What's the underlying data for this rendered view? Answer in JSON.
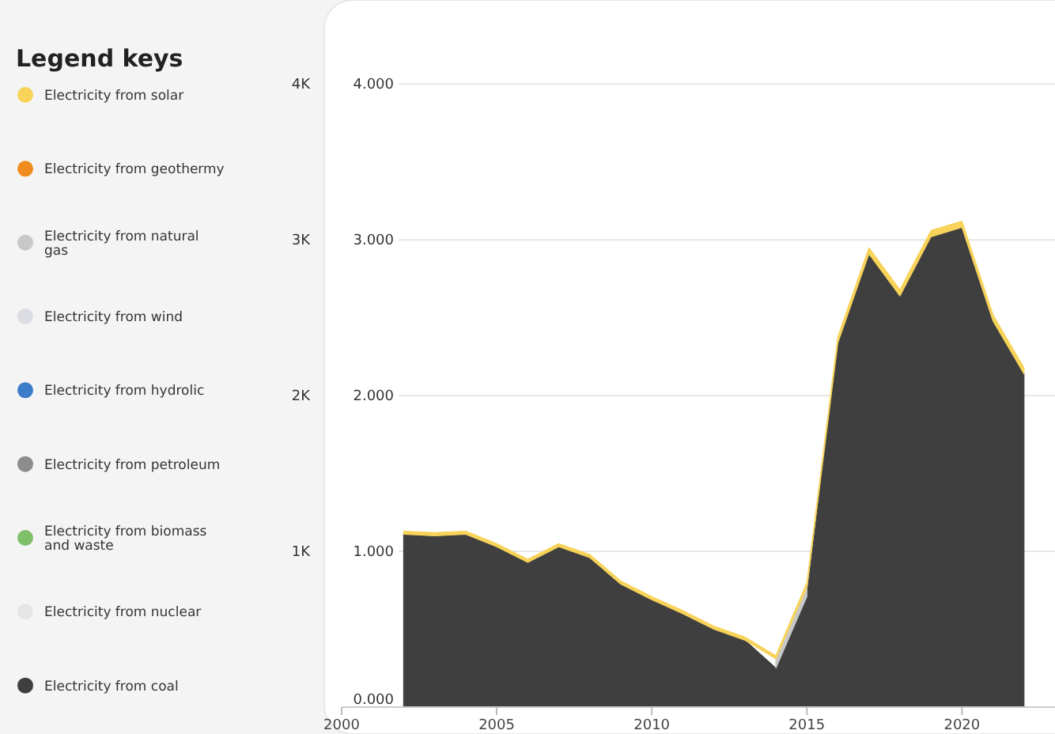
{
  "chart_data": {
    "type": "area",
    "stacked": true,
    "legend_title": "Legend keys",
    "legend": "left",
    "x": [
      2002,
      2003,
      2004,
      2005,
      2006,
      2007,
      2008,
      2009,
      2010,
      2011,
      2012,
      2013,
      2014,
      2015,
      2016,
      2017,
      2018,
      2019,
      2020,
      2021,
      2022
    ],
    "series": [
      {
        "name": "Electricity from coal",
        "color": "#3f3f3f",
        "values": [
          1110,
          1100,
          1110,
          1030,
          930,
          1030,
          960,
          790,
          690,
          600,
          500,
          430,
          250,
          710,
          2340,
          2910,
          2640,
          3020,
          3080,
          2480,
          2140
        ]
      },
      {
        "name": "Electricity from nuclear",
        "color": "#e6e6e6",
        "values": [
          null,
          null,
          null,
          null,
          null,
          null,
          null,
          null,
          null,
          null,
          null,
          null,
          null,
          null,
          null,
          null,
          null,
          null,
          null,
          null,
          null
        ]
      },
      {
        "name": "Electricity from biomass and waste",
        "color": "#7fbf6a",
        "values": [
          null,
          null,
          null,
          null,
          null,
          null,
          null,
          null,
          null,
          null,
          null,
          null,
          null,
          null,
          null,
          null,
          null,
          null,
          null,
          null,
          null
        ]
      },
      {
        "name": "Electricity from petroleum",
        "color": "#8c8c8c",
        "values": [
          null,
          null,
          null,
          null,
          null,
          null,
          null,
          null,
          null,
          null,
          null,
          null,
          null,
          null,
          null,
          null,
          null,
          null,
          null,
          null,
          null
        ]
      },
      {
        "name": "Electricity from hydrolic",
        "color": "#3d7cc9",
        "values": [
          null,
          null,
          null,
          null,
          null,
          null,
          null,
          null,
          null,
          null,
          null,
          null,
          null,
          null,
          null,
          null,
          null,
          null,
          null,
          null,
          null
        ]
      },
      {
        "name": "Electricity from wind",
        "color": "#dcdde3",
        "values": [
          null,
          null,
          null,
          null,
          null,
          null,
          null,
          null,
          null,
          null,
          null,
          null,
          null,
          null,
          null,
          null,
          null,
          null,
          null,
          null,
          null
        ]
      },
      {
        "name": "Electricity from natural gas",
        "color": "#c8c8c8",
        "values": [
          null,
          null,
          null,
          null,
          null,
          null,
          null,
          null,
          null,
          null,
          null,
          null,
          60,
          60,
          null,
          null,
          null,
          null,
          null,
          null,
          null
        ]
      },
      {
        "name": "Electricity from geothermy",
        "color": "#f08c1e",
        "values": [
          null,
          null,
          null,
          null,
          null,
          null,
          null,
          null,
          null,
          null,
          null,
          null,
          null,
          null,
          null,
          null,
          null,
          null,
          null,
          null,
          null
        ]
      },
      {
        "name": "Electricity from solar",
        "color": "#f7d35a",
        "values": [
          20,
          20,
          20,
          20,
          20,
          20,
          20,
          20,
          20,
          20,
          20,
          20,
          20,
          30,
          40,
          40,
          40,
          40,
          40,
          40,
          40
        ]
      }
    ],
    "xlim": [
      2000,
      2023
    ],
    "xticks": [
      2000,
      2005,
      2010,
      2015,
      2020
    ],
    "ylim": [
      0,
      4540
    ],
    "yticks": [
      {
        "value": 1000,
        "label": "1K"
      },
      {
        "value": 2000,
        "label": "2K"
      },
      {
        "value": 3000,
        "label": "3K"
      },
      {
        "value": 4000,
        "label": "4K"
      }
    ],
    "y2lim": [
      0,
      4.54
    ],
    "y2ticks": [
      {
        "value": 0,
        "label": "0.000"
      },
      {
        "value": 1,
        "label": "1.000"
      },
      {
        "value": 2,
        "label": "2.000"
      },
      {
        "value": 3,
        "label": "3.000"
      },
      {
        "value": 4,
        "label": "4.000"
      }
    ],
    "grid": "y"
  }
}
